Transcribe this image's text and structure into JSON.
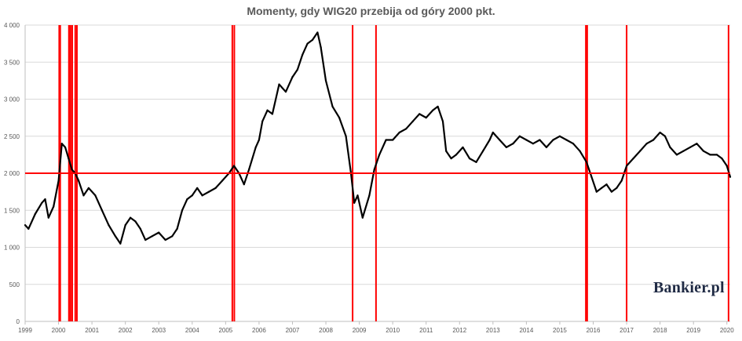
{
  "chart_data": {
    "type": "line",
    "title": "Momenty, gdy WIG20 przebija od góry 2000 pkt.",
    "xlabel": "",
    "ylabel": "",
    "xlim": [
      1999,
      2020.1
    ],
    "ylim": [
      0,
      4000
    ],
    "y_ticks": [
      0,
      500,
      1000,
      1500,
      2000,
      2500,
      3000,
      3500,
      4000
    ],
    "y_tick_labels": [
      "0",
      "500",
      "1 000",
      "1 500",
      "2 000",
      "2 500",
      "3 000",
      "3 500",
      "4 000"
    ],
    "x_ticks": [
      1999,
      2000,
      2001,
      2002,
      2003,
      2004,
      2005,
      2006,
      2007,
      2008,
      2009,
      2010,
      2011,
      2012,
      2013,
      2014,
      2015,
      2016,
      2017,
      2018,
      2019,
      2020
    ],
    "x_tick_labels": [
      "1999",
      "2000",
      "2001",
      "2002",
      "2003",
      "2004",
      "2005",
      "2006",
      "2007",
      "2008",
      "2009",
      "2010",
      "2011",
      "2012",
      "2013",
      "2014",
      "2015",
      "2016",
      "2017",
      "2018",
      "2019",
      "2020"
    ],
    "grid": true,
    "legend": "none",
    "series": [
      {
        "color": "#000000",
        "x": [
          1999.0,
          1999.1,
          1999.3,
          1999.5,
          1999.6,
          1999.7,
          1999.85,
          2000.0,
          2000.1,
          2000.2,
          2000.3,
          2000.4,
          2000.5,
          2000.6,
          2000.75,
          2000.9,
          2001.1,
          2001.3,
          2001.5,
          2001.7,
          2001.85,
          2002.0,
          2002.15,
          2002.3,
          2002.45,
          2002.6,
          2002.8,
          2003.0,
          2003.2,
          2003.4,
          2003.55,
          2003.7,
          2003.85,
          2004.0,
          2004.15,
          2004.3,
          2004.5,
          2004.7,
          2004.9,
          2005.1,
          2005.25,
          2005.4,
          2005.55,
          2005.7,
          2005.9,
          2006.0,
          2006.1,
          2006.25,
          2006.4,
          2006.6,
          2006.8,
          2007.0,
          2007.15,
          2007.3,
          2007.45,
          2007.6,
          2007.75,
          2007.85,
          2008.0,
          2008.2,
          2008.4,
          2008.6,
          2008.75,
          2008.85,
          2008.95,
          2009.1,
          2009.3,
          2009.45,
          2009.6,
          2009.8,
          2010.0,
          2010.2,
          2010.4,
          2010.6,
          2010.8,
          2011.0,
          2011.2,
          2011.35,
          2011.5,
          2011.6,
          2011.75,
          2011.9,
          2012.1,
          2012.3,
          2012.5,
          2012.7,
          2012.9,
          2013.0,
          2013.2,
          2013.4,
          2013.6,
          2013.8,
          2014.0,
          2014.2,
          2014.4,
          2014.6,
          2014.8,
          2015.0,
          2015.2,
          2015.4,
          2015.6,
          2015.8,
          2015.95,
          2016.1,
          2016.25,
          2016.4,
          2016.55,
          2016.7,
          2016.85,
          2017.0,
          2017.2,
          2017.4,
          2017.6,
          2017.8,
          2018.0,
          2018.15,
          2018.3,
          2018.5,
          2018.7,
          2018.9,
          2019.1,
          2019.3,
          2019.5,
          2019.7,
          2019.85,
          2020.0,
          2020.1
        ],
        "values": [
          1300,
          1250,
          1450,
          1600,
          1650,
          1400,
          1550,
          1900,
          2400,
          2350,
          2200,
          2050,
          2000,
          1900,
          1700,
          1800,
          1700,
          1500,
          1300,
          1150,
          1050,
          1300,
          1400,
          1350,
          1250,
          1100,
          1150,
          1200,
          1100,
          1150,
          1250,
          1500,
          1650,
          1700,
          1800,
          1700,
          1750,
          1800,
          1900,
          2000,
          2100,
          2000,
          1850,
          2050,
          2350,
          2450,
          2700,
          2850,
          2800,
          3200,
          3100,
          3300,
          3400,
          3600,
          3750,
          3800,
          3900,
          3700,
          3250,
          2900,
          2750,
          2500,
          2000,
          1600,
          1700,
          1400,
          1700,
          2050,
          2250,
          2450,
          2450,
          2550,
          2600,
          2700,
          2800,
          2750,
          2850,
          2900,
          2700,
          2300,
          2200,
          2250,
          2350,
          2200,
          2150,
          2300,
          2450,
          2550,
          2450,
          2350,
          2400,
          2500,
          2450,
          2400,
          2450,
          2350,
          2450,
          2500,
          2450,
          2400,
          2300,
          2150,
          1950,
          1750,
          1800,
          1850,
          1750,
          1800,
          1900,
          2100,
          2200,
          2300,
          2400,
          2450,
          2550,
          2500,
          2350,
          2250,
          2300,
          2350,
          2400,
          2300,
          2250,
          2250,
          2200,
          2100,
          1950
        ]
      }
    ],
    "reference_line": {
      "y": 2000,
      "color": "#ff0000"
    },
    "vertical_markers": {
      "color": "#ff0000",
      "x": [
        2000.02,
        2000.05,
        2000.31,
        2000.33,
        2000.36,
        2000.41,
        2000.5,
        2000.55,
        2005.2,
        2005.26,
        2008.8,
        2009.5,
        2015.78,
        2015.82,
        2017.0,
        2020.05
      ]
    }
  },
  "branding": {
    "logo": "Bankier.pl"
  }
}
